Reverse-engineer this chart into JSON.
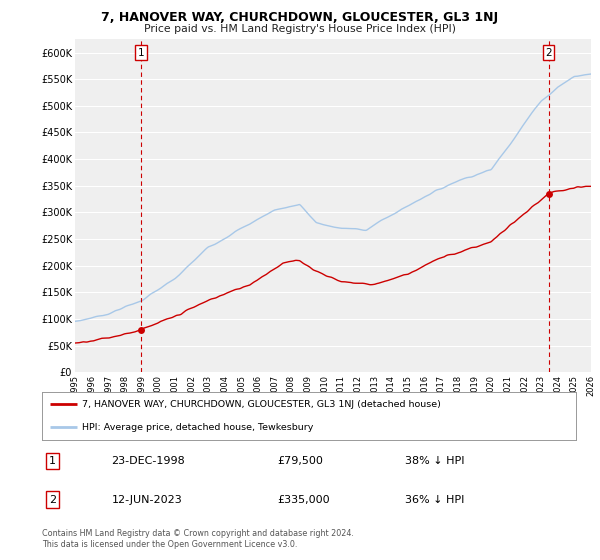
{
  "title": "7, HANOVER WAY, CHURCHDOWN, GLOUCESTER, GL3 1NJ",
  "subtitle": "Price paid vs. HM Land Registry's House Price Index (HPI)",
  "background_color": "#ffffff",
  "plot_bg_color": "#efefef",
  "grid_color": "#ffffff",
  "hpi_color": "#a8c8e8",
  "price_color": "#cc0000",
  "dashed_color": "#cc0000",
  "sale1_date": "23-DEC-1998",
  "sale1_price": 79500,
  "sale1_label": "38% ↓ HPI",
  "sale1_year": 1998.97,
  "sale2_date": "12-JUN-2023",
  "sale2_price": 335000,
  "sale2_label": "36% ↓ HPI",
  "sale2_year": 2023.45,
  "legend_line1": "7, HANOVER WAY, CHURCHDOWN, GLOUCESTER, GL3 1NJ (detached house)",
  "legend_line2": "HPI: Average price, detached house, Tewkesbury",
  "footer": "Contains HM Land Registry data © Crown copyright and database right 2024.\nThis data is licensed under the Open Government Licence v3.0.",
  "ytick_vals": [
    0,
    50000,
    100000,
    150000,
    200000,
    250000,
    300000,
    350000,
    400000,
    450000,
    500000,
    550000,
    600000
  ],
  "ytick_labels": [
    "£0",
    "£50K",
    "£100K",
    "£150K",
    "£200K",
    "£250K",
    "£300K",
    "£350K",
    "£400K",
    "£450K",
    "£500K",
    "£550K",
    "£600K"
  ]
}
